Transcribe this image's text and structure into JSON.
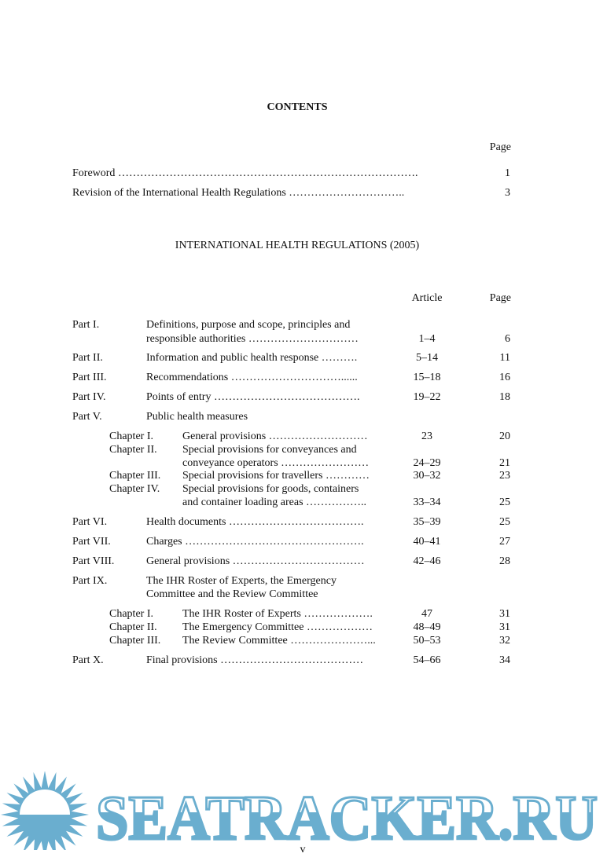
{
  "heading": "CONTENTS",
  "page_col": "Page",
  "front": [
    {
      "title": "Foreword ……………………………………………………………………….",
      "page": "1"
    },
    {
      "title": "Revision of the International Health Regulations …………………………..",
      "page": "3"
    }
  ],
  "ihr_title": "INTERNATIONAL HEALTH REGULATIONS (2005)",
  "cols": {
    "article": "Article",
    "page": "Page"
  },
  "parts": [
    {
      "label": "Part I.",
      "line1": "Definitions, purpose and scope, principles and",
      "line2": "responsible authorities …………………………",
      "article": "1–4",
      "page": "6"
    },
    {
      "label": "Part II.",
      "line1": "Information and public health response ……….",
      "article": "5–14",
      "page": "11"
    },
    {
      "label": "Part III.",
      "line1": "Recommendations …………………………......",
      "article": "15–18",
      "page": "16"
    },
    {
      "label": "Part IV.",
      "line1": "Points of entry ………………………………….",
      "article": "19–22",
      "page": "18"
    },
    {
      "label": "Part V.",
      "line1": "Public health measures"
    },
    {
      "label": "Part VI.",
      "line1": "Health documents ……………………………….",
      "article": "35–39",
      "page": "25"
    },
    {
      "label": "Part VII.",
      "line1": "Charges ………………………………………….",
      "article": "40–41",
      "page": "27"
    },
    {
      "label": "Part VIII.",
      "line1": "General provisions ………………………………",
      "article": "42–46",
      "page": "28"
    },
    {
      "label": "Part IX.",
      "line1": "The IHR Roster of Experts, the Emergency",
      "line2": "Committee and the Review Committee"
    },
    {
      "label": "Part X.",
      "line1": "Final provisions …………………………………",
      "article": "54–66",
      "page": "34"
    }
  ],
  "part5_chapters": [
    {
      "label": "Chapter I.",
      "line1": "General provisions ………………………",
      "article": "23",
      "page": "20"
    },
    {
      "label": "Chapter II.",
      "line1": "Special provisions for conveyances and",
      "line2": "conveyance operators ……………………",
      "article": "24–29",
      "page": "21"
    },
    {
      "label": "Chapter III.",
      "line1": "Special provisions for travellers …………",
      "article": "30–32",
      "page": "23"
    },
    {
      "label": "Chapter IV.",
      "line1": "Special provisions for goods, containers",
      "line2": "and container loading areas ……………..",
      "article": "33–34",
      "page": "25"
    }
  ],
  "part9_chapters": [
    {
      "label": "Chapter I.",
      "line1": "The IHR Roster of Experts ……………….",
      "article": "47",
      "page": "31"
    },
    {
      "label": "Chapter II.",
      "line1": "The Emergency Committee ………………",
      "article": "48–49",
      "page": "31"
    },
    {
      "label": "Chapter III.",
      "line1": "The Review Committee …………………...",
      "article": "50–53",
      "page": "32"
    }
  ],
  "page_number": "v",
  "watermark": {
    "text": "SEATRACKER.RU",
    "color": "#6aaecf"
  }
}
